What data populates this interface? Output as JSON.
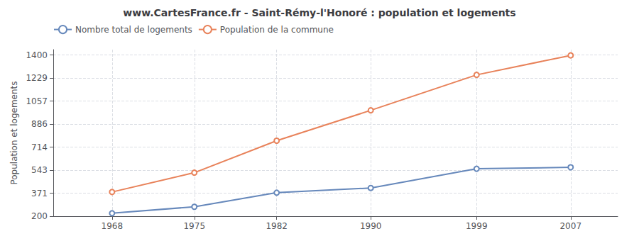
{
  "chart_data": {
    "type": "line",
    "title": "www.CartesFrance.fr - Saint-Rémy-l'Honoré : population et logements",
    "ylabel": "Population et logements",
    "x": [
      1968,
      1975,
      1982,
      1990,
      1999,
      2007
    ],
    "series": [
      {
        "name": "Nombre total de logements",
        "color": "#6688bb",
        "values": [
          222,
          270,
          375,
          410,
          553,
          564
        ]
      },
      {
        "name": "Population de la commune",
        "color": "#e8825a",
        "values": [
          380,
          524,
          762,
          988,
          1252,
          1397
        ]
      }
    ],
    "xlim": [
      1963,
      2011
    ],
    "xticks": [
      1968,
      1975,
      1982,
      1990,
      1999,
      2007
    ],
    "ylim": [
      200,
      1440
    ],
    "yticks": [
      200,
      371,
      543,
      714,
      886,
      1057,
      1229,
      1400
    ],
    "grid": true,
    "legend": "upper left",
    "marker": "circle"
  }
}
